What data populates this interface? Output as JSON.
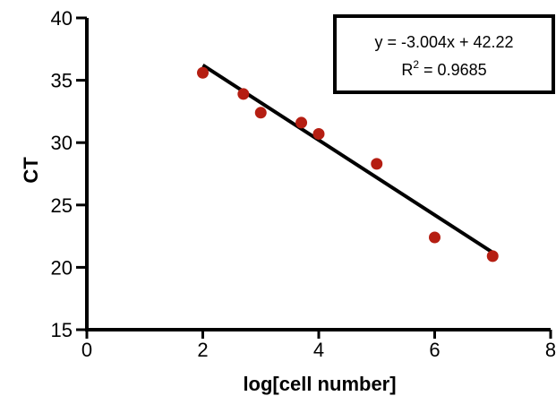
{
  "chart_data": {
    "type": "scatter",
    "title": "",
    "xlabel": "log[cell number]",
    "ylabel": "CT",
    "xlim": [
      0,
      8
    ],
    "ylim": [
      15,
      40
    ],
    "x_ticks": [
      0,
      2,
      4,
      6,
      8
    ],
    "y_ticks": [
      15,
      20,
      25,
      30,
      35,
      40
    ],
    "grid": false,
    "series": [
      {
        "points": [
          {
            "x": 2.0,
            "y": 35.6
          },
          {
            "x": 2.7,
            "y": 33.9
          },
          {
            "x": 3.0,
            "y": 32.4
          },
          {
            "x": 3.7,
            "y": 31.6
          },
          {
            "x": 4.0,
            "y": 30.7
          },
          {
            "x": 5.0,
            "y": 28.3
          },
          {
            "x": 6.0,
            "y": 22.4
          },
          {
            "x": 7.0,
            "y": 20.9
          }
        ],
        "color": "#b51e12"
      }
    ],
    "trendline": {
      "slope": -3.004,
      "intercept": 42.22,
      "x_start": 2,
      "x_end": 7,
      "color": "#000000"
    },
    "annotation": {
      "equation": "y = -3.004x + 42.22",
      "r2_label": "R",
      "r2_sup": "2",
      "r2_value": " = 0.9685",
      "placement": "top-right"
    }
  }
}
